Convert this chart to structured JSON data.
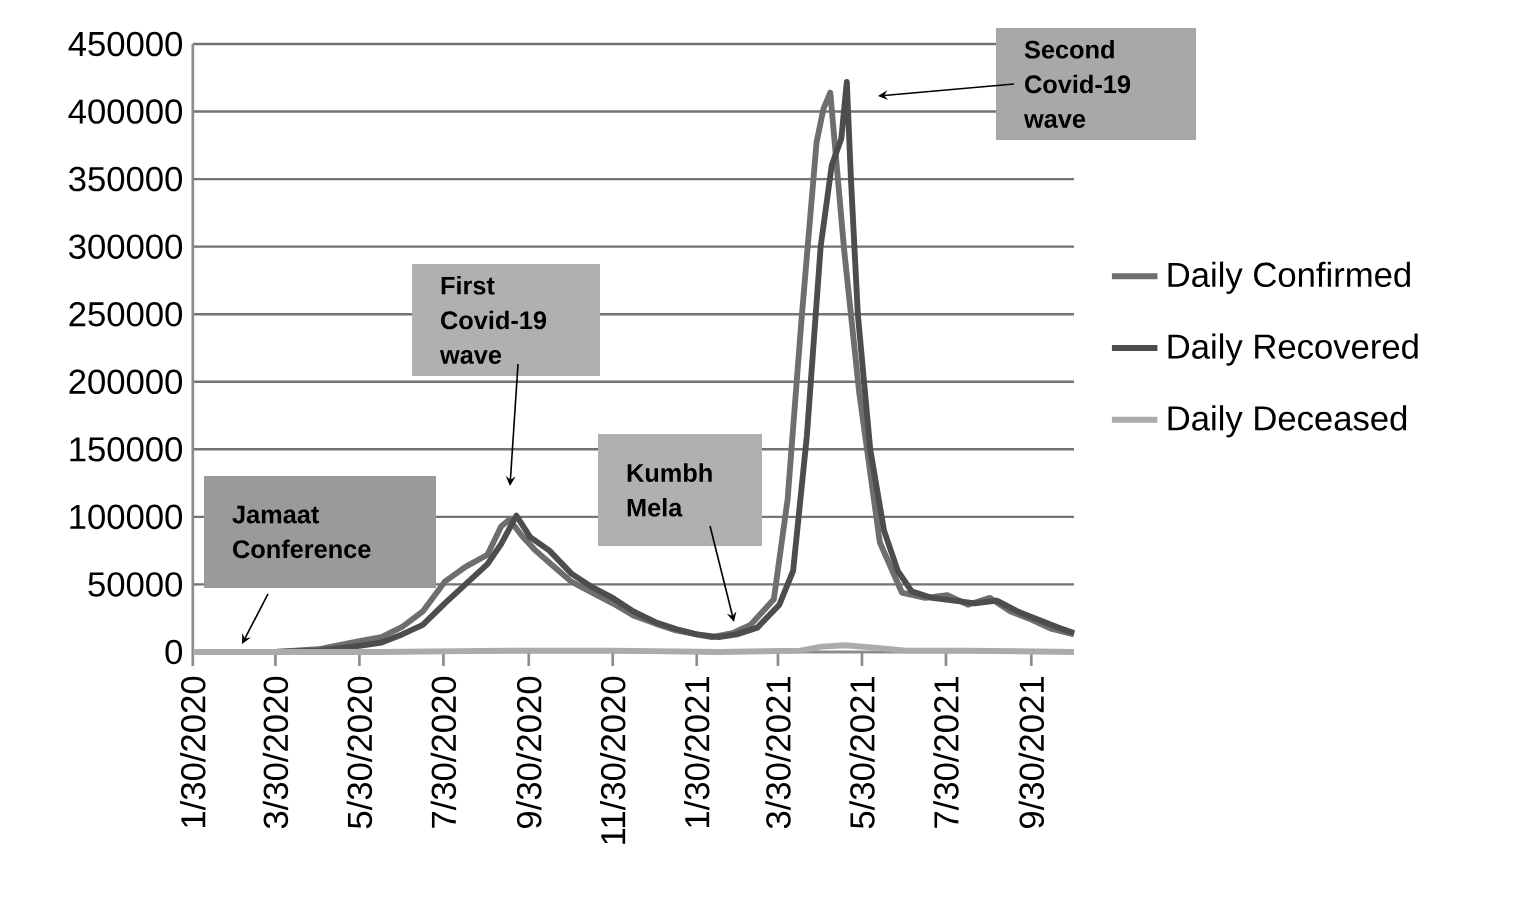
{
  "chart_data": {
    "type": "line",
    "xlim": [
      "2020-01-30",
      "2021-10-31"
    ],
    "xticks": [
      {
        "value": "2020-01-30",
        "label": "1/30/2020"
      },
      {
        "value": "2020-03-30",
        "label": "3/30/2020"
      },
      {
        "value": "2020-05-30",
        "label": "5/30/2020"
      },
      {
        "value": "2020-07-30",
        "label": "7/30/2020"
      },
      {
        "value": "2020-09-30",
        "label": "9/30/2020"
      },
      {
        "value": "2020-11-30",
        "label": "11/30/2020"
      },
      {
        "value": "2021-01-30",
        "label": "1/30/2021"
      },
      {
        "value": "2021-03-30",
        "label": "3/30/2021"
      },
      {
        "value": "2021-05-30",
        "label": "5/30/2021"
      },
      {
        "value": "2021-07-30",
        "label": "7/30/2021"
      },
      {
        "value": "2021-09-30",
        "label": "9/30/2021"
      }
    ],
    "ylim": [
      0,
      450000
    ],
    "yticks": [
      0,
      50000,
      100000,
      150000,
      200000,
      250000,
      300000,
      350000,
      400000,
      450000
    ],
    "grid": "y",
    "legend": "right",
    "marker": "none",
    "line_style": "solid",
    "series": [
      {
        "name": "Daily Confirmed",
        "color": "#6e6e6e",
        "x": [
          "2020-01-30",
          "2020-03-01",
          "2020-03-30",
          "2020-04-30",
          "2020-05-30",
          "2020-06-15",
          "2020-06-30",
          "2020-07-15",
          "2020-07-31",
          "2020-08-15",
          "2020-08-31",
          "2020-09-10",
          "2020-09-16",
          "2020-09-25",
          "2020-10-05",
          "2020-10-15",
          "2020-10-31",
          "2020-11-15",
          "2020-11-30",
          "2020-12-15",
          "2020-12-31",
          "2021-01-15",
          "2021-01-30",
          "2021-02-10",
          "2021-02-25",
          "2021-03-10",
          "2021-03-27",
          "2021-04-06",
          "2021-04-16",
          "2021-04-27",
          "2021-05-02",
          "2021-05-07",
          "2021-05-17",
          "2021-05-28",
          "2021-06-12",
          "2021-06-28",
          "2021-07-15",
          "2021-07-31",
          "2021-08-15",
          "2021-08-31",
          "2021-09-15",
          "2021-09-30",
          "2021-10-15",
          "2021-10-31"
        ],
        "values": [
          0,
          0,
          0,
          2000,
          8000,
          11000,
          18500,
          30000,
          52000,
          63000,
          72000,
          93000,
          98000,
          86000,
          75000,
          66000,
          52000,
          44000,
          36000,
          27000,
          21000,
          16000,
          13000,
          11000,
          14000,
          20000,
          39000,
          113000,
          245000,
          377000,
          402000,
          414000,
          298000,
          192000,
          81000,
          44000,
          40000,
          42000,
          35000,
          40000,
          30000,
          24000,
          17000,
          13000
        ]
      },
      {
        "name": "Daily Recovered",
        "color": "#4d4d4d",
        "x": [
          "2020-01-30",
          "2020-03-30",
          "2020-04-30",
          "2020-05-30",
          "2020-06-15",
          "2020-06-30",
          "2020-07-15",
          "2020-07-31",
          "2020-08-15",
          "2020-08-31",
          "2020-09-10",
          "2020-09-21",
          "2020-10-01",
          "2020-10-15",
          "2020-10-31",
          "2020-11-15",
          "2020-11-30",
          "2020-12-15",
          "2020-12-31",
          "2021-01-15",
          "2021-01-30",
          "2021-02-15",
          "2021-02-28",
          "2021-03-15",
          "2021-03-31",
          "2021-04-10",
          "2021-04-20",
          "2021-04-30",
          "2021-05-08",
          "2021-05-15",
          "2021-05-19",
          "2021-05-22",
          "2021-05-27",
          "2021-06-05",
          "2021-06-15",
          "2021-06-25",
          "2021-07-05",
          "2021-07-20",
          "2021-08-05",
          "2021-08-20",
          "2021-09-05",
          "2021-09-20",
          "2021-10-05",
          "2021-10-20",
          "2021-10-31"
        ],
        "values": [
          0,
          0,
          1000,
          4500,
          7000,
          13000,
          20000,
          36000,
          50000,
          65000,
          80000,
          101000,
          85000,
          75000,
          58000,
          48000,
          40000,
          30000,
          22000,
          17000,
          13000,
          11000,
          13000,
          18000,
          35000,
          60000,
          160000,
          300000,
          360000,
          380000,
          422000,
          350000,
          250000,
          150000,
          90000,
          60000,
          45000,
          40000,
          38000,
          36000,
          38000,
          30000,
          24000,
          18000,
          14000
        ]
      },
      {
        "name": "Daily Deceased",
        "color": "#ababab",
        "x": [
          "2020-01-30",
          "2020-03-30",
          "2020-06-15",
          "2020-09-15",
          "2020-11-30",
          "2021-02-15",
          "2021-04-15",
          "2021-05-01",
          "2021-05-18",
          "2021-06-10",
          "2021-07-01",
          "2021-08-15",
          "2021-10-31"
        ],
        "values": [
          0,
          0,
          0,
          1000,
          1000,
          0,
          1000,
          4000,
          5000,
          3000,
          1000,
          1000,
          0
        ]
      }
    ],
    "annotations": [
      "Jamaat Conference",
      "First Covid-19 wave",
      "Kumbh Mela",
      "Second Covid-19 wave"
    ]
  }
}
